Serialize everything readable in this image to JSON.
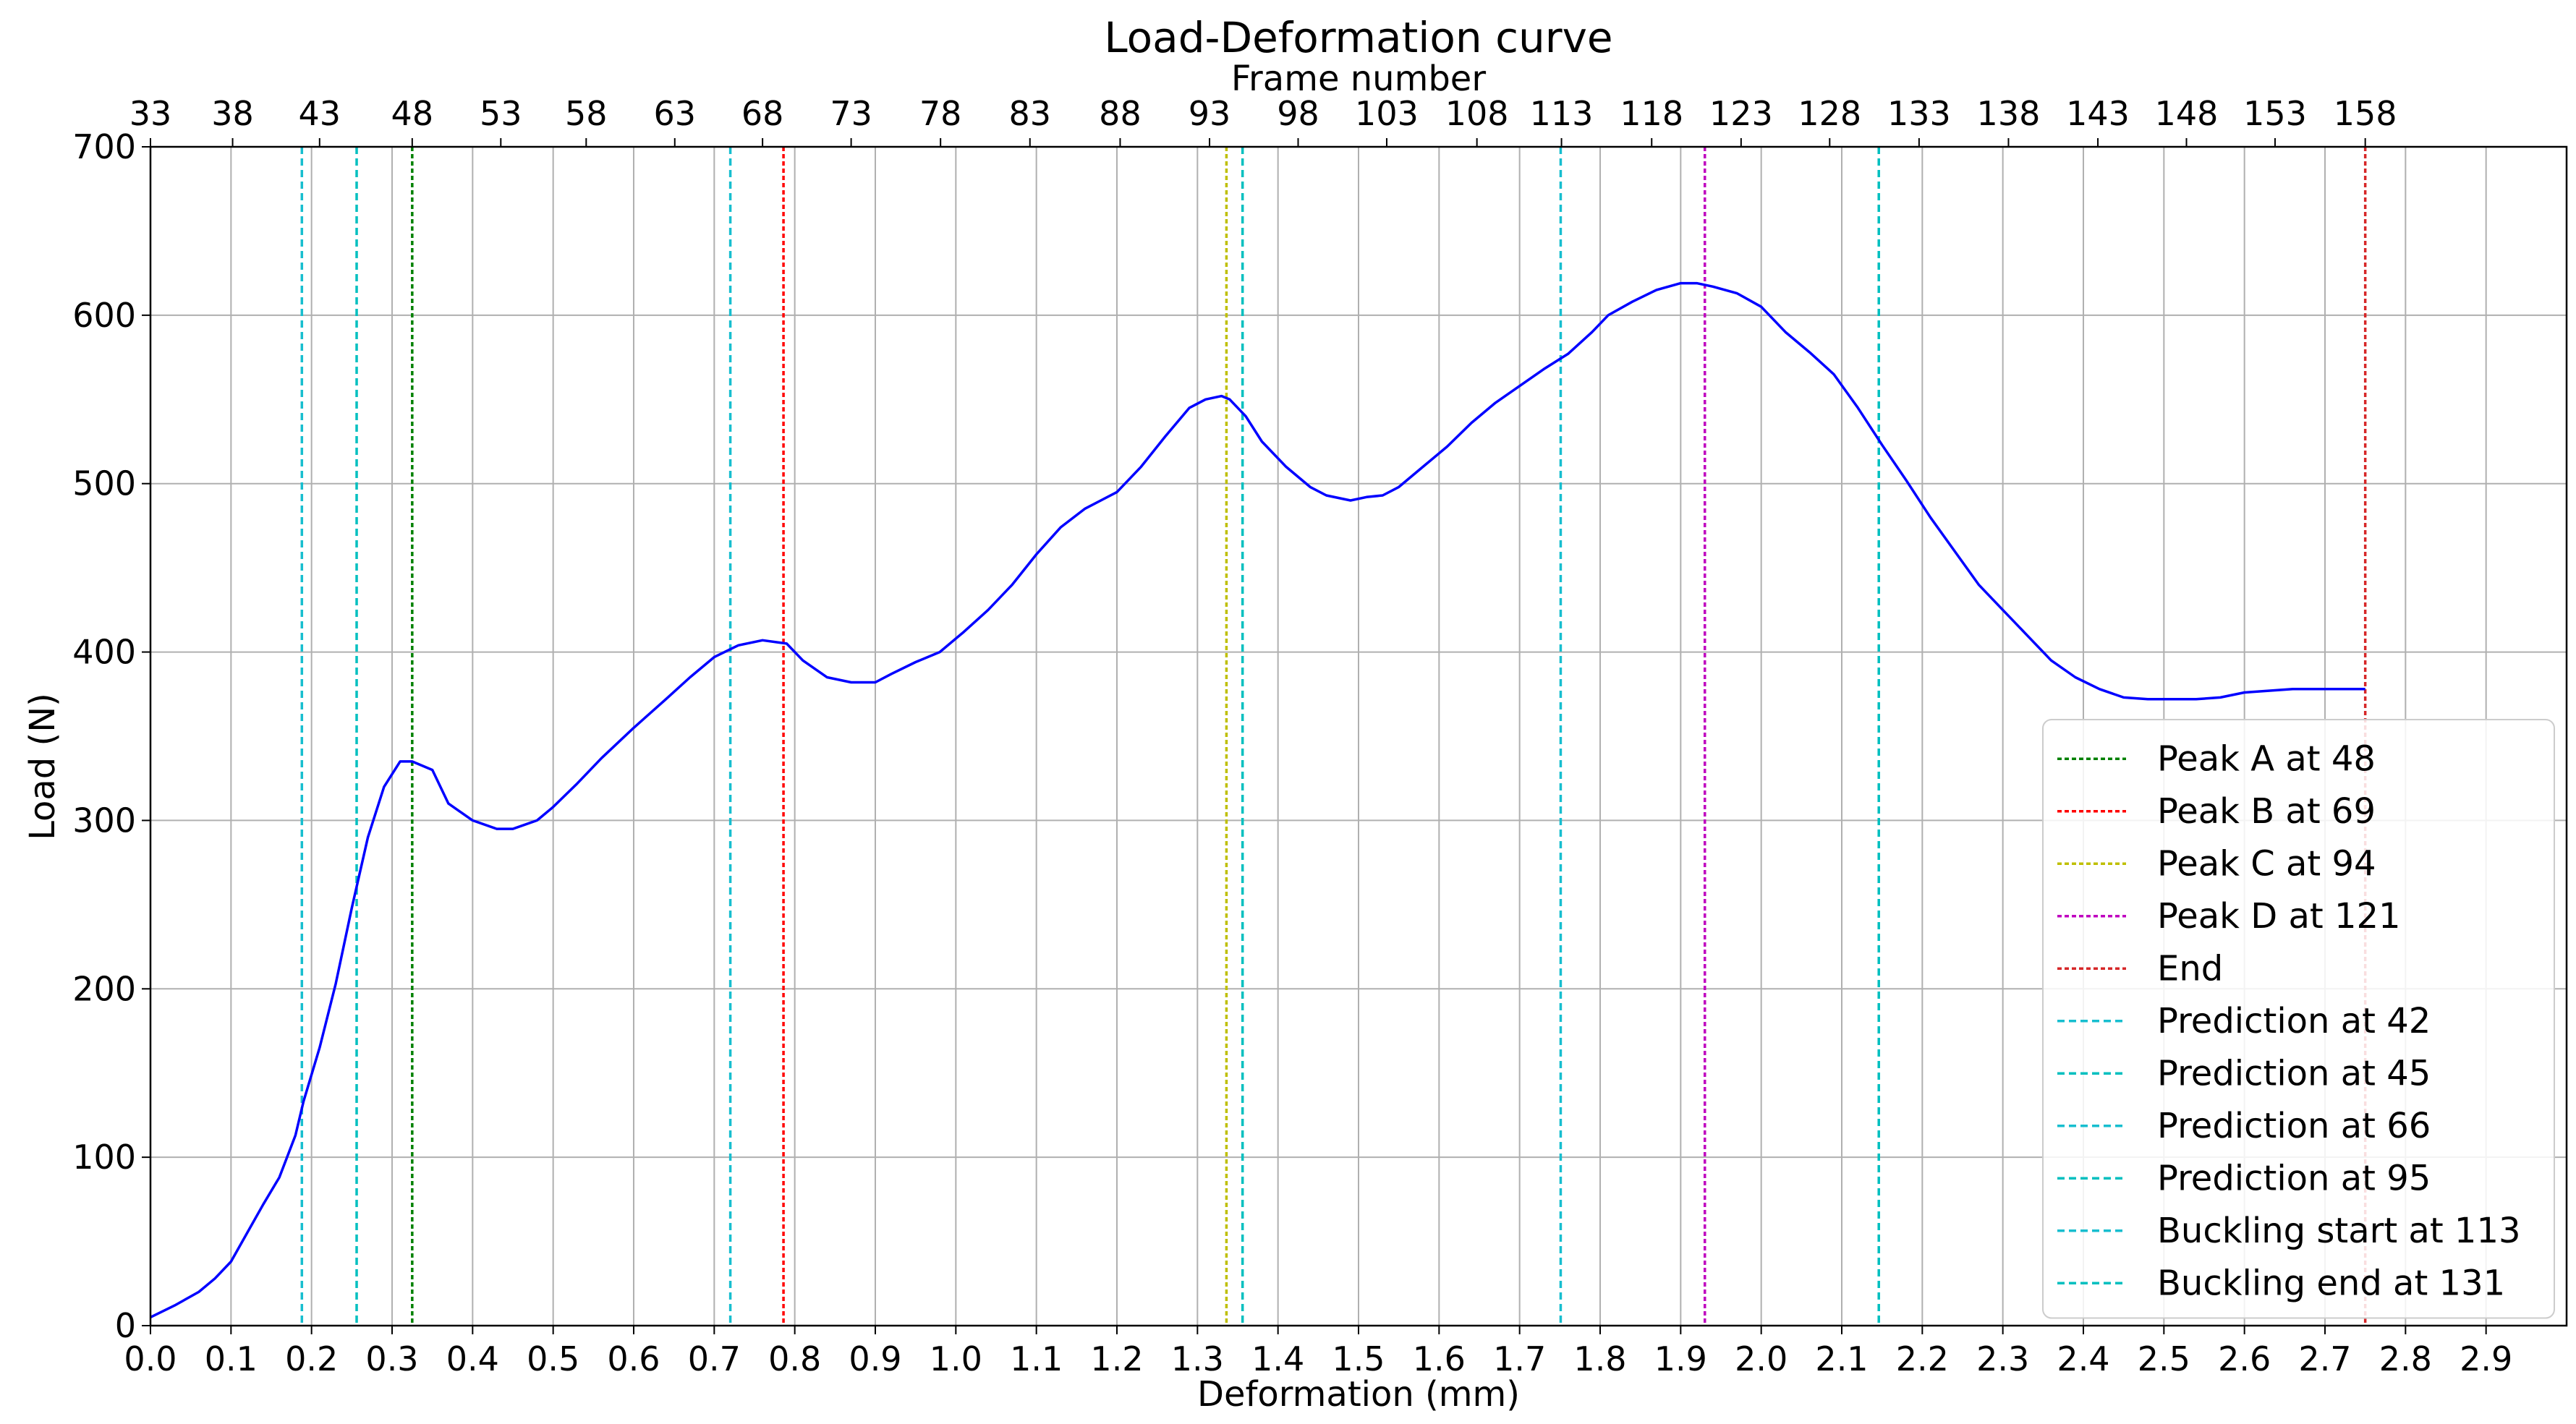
{
  "chart_data": {
    "type": "line",
    "title": "Load-Deformation curve",
    "xlabel": "Deformation (mm)",
    "ylabel": "Load (N)",
    "x2label": "Frame number",
    "xlim": [
      0,
      3.0
    ],
    "ylim": [
      0,
      700
    ],
    "x_ticks": [
      "0.0",
      "0.1",
      "0.2",
      "0.3",
      "0.4",
      "0.5",
      "0.6",
      "0.7",
      "0.8",
      "0.9",
      "1.0",
      "1.1",
      "1.2",
      "1.3",
      "1.4",
      "1.5",
      "1.6",
      "1.7",
      "1.8",
      "1.9",
      "2.0",
      "2.1",
      "2.2",
      "2.3",
      "2.4",
      "2.5",
      "2.6",
      "2.7",
      "2.8",
      "2.9"
    ],
    "y_ticks": [
      "0",
      "100",
      "200",
      "300",
      "400",
      "500",
      "600",
      "700"
    ],
    "frame_ticks": [
      {
        "label": "33",
        "x": 0.0
      },
      {
        "label": "38",
        "x": 0.102
      },
      {
        "label": "43",
        "x": 0.21
      },
      {
        "label": "48",
        "x": 0.325
      },
      {
        "label": "53",
        "x": 0.435
      },
      {
        "label": "58",
        "x": 0.541
      },
      {
        "label": "63",
        "x": 0.651
      },
      {
        "label": "68",
        "x": 0.76
      },
      {
        "label": "73",
        "x": 0.87
      },
      {
        "label": "78",
        "x": 0.981
      },
      {
        "label": "83",
        "x": 1.092
      },
      {
        "label": "88",
        "x": 1.204
      },
      {
        "label": "93",
        "x": 1.315
      },
      {
        "label": "98",
        "x": 1.425
      },
      {
        "label": "103",
        "x": 1.535
      },
      {
        "label": "108",
        "x": 1.647
      },
      {
        "label": "113",
        "x": 1.752
      },
      {
        "label": "118",
        "x": 1.864
      },
      {
        "label": "123",
        "x": 1.975
      },
      {
        "label": "128",
        "x": 2.085
      },
      {
        "label": "133",
        "x": 2.196
      },
      {
        "label": "138",
        "x": 2.307
      },
      {
        "label": "143",
        "x": 2.418
      },
      {
        "label": "148",
        "x": 2.528
      },
      {
        "label": "153",
        "x": 2.638
      },
      {
        "label": "158",
        "x": 2.75
      }
    ],
    "grid": true,
    "legend_position": "lower-right",
    "series": [
      {
        "color": "#0000ff",
        "x": [
          0.0,
          0.03,
          0.06,
          0.08,
          0.1,
          0.12,
          0.14,
          0.16,
          0.18,
          0.19,
          0.21,
          0.23,
          0.25,
          0.27,
          0.29,
          0.31,
          0.325,
          0.35,
          0.37,
          0.4,
          0.43,
          0.45,
          0.48,
          0.5,
          0.53,
          0.56,
          0.6,
          0.64,
          0.67,
          0.7,
          0.73,
          0.76,
          0.79,
          0.81,
          0.84,
          0.87,
          0.9,
          0.92,
          0.95,
          0.98,
          1.01,
          1.04,
          1.07,
          1.1,
          1.13,
          1.16,
          1.2,
          1.23,
          1.26,
          1.29,
          1.31,
          1.33,
          1.34,
          1.36,
          1.38,
          1.41,
          1.44,
          1.46,
          1.49,
          1.51,
          1.53,
          1.55,
          1.58,
          1.61,
          1.64,
          1.67,
          1.7,
          1.73,
          1.76,
          1.79,
          1.81,
          1.84,
          1.87,
          1.9,
          1.92,
          1.94,
          1.97,
          2.0,
          2.03,
          2.06,
          2.09,
          2.12,
          2.15,
          2.18,
          2.21,
          2.24,
          2.27,
          2.3,
          2.33,
          2.36,
          2.39,
          2.42,
          2.45,
          2.48,
          2.51,
          2.54,
          2.57,
          2.6,
          2.63,
          2.66,
          2.69,
          2.72,
          2.75
        ],
        "values": [
          5,
          12,
          20,
          28,
          38,
          55,
          72,
          88,
          113,
          133,
          165,
          203,
          248,
          290,
          320,
          335,
          335,
          330,
          310,
          300,
          295,
          295,
          300,
          308,
          322,
          337,
          355,
          372,
          385,
          397,
          404,
          407,
          405,
          395,
          385,
          382,
          382,
          387,
          394,
          400,
          412,
          425,
          440,
          458,
          474,
          485,
          495,
          510,
          528,
          545,
          550,
          552,
          550,
          540,
          525,
          510,
          498,
          493,
          490,
          492,
          493,
          498,
          510,
          522,
          536,
          548,
          558,
          568,
          577,
          590,
          600,
          608,
          615,
          619,
          619,
          617,
          613,
          605,
          590,
          578,
          565,
          545,
          523,
          502,
          480,
          460,
          440,
          425,
          410,
          395,
          385,
          378,
          373,
          372,
          372,
          372,
          373,
          376,
          377,
          378,
          378,
          378,
          378
        ]
      }
    ],
    "vlines": [
      {
        "x": 0.325,
        "color": "#008000",
        "dash": "6,4",
        "label": "Peak A at 48"
      },
      {
        "x": 0.786,
        "color": "#ff0000",
        "dash": "6,4",
        "label": "Peak B at 69"
      },
      {
        "x": 1.336,
        "color": "#bfbf00",
        "dash": "6,4",
        "label": "Peak C at 94"
      },
      {
        "x": 1.93,
        "color": "#bf00bf",
        "dash": "6,4",
        "label": "Peak D at 121"
      },
      {
        "x": 2.75,
        "color": "#d62728",
        "dash": "6,4",
        "label": "End"
      },
      {
        "x": 0.188,
        "color": "#17becf",
        "dash": "10,6",
        "label": "Prediction at 42"
      },
      {
        "x": 0.256,
        "color": "#00bfbf",
        "dash": "10,6",
        "label": "Prediction at 45"
      },
      {
        "x": 0.72,
        "color": "#17becf",
        "dash": "10,6",
        "label": "Prediction at 66"
      },
      {
        "x": 1.356,
        "color": "#00bfbf",
        "dash": "10,6",
        "label": "Prediction at 95"
      },
      {
        "x": 1.751,
        "color": "#17becf",
        "dash": "10,6",
        "label": "Buckling start at 113"
      },
      {
        "x": 2.146,
        "color": "#00bfbf",
        "dash": "10,6",
        "label": "Buckling end at 131"
      }
    ]
  }
}
